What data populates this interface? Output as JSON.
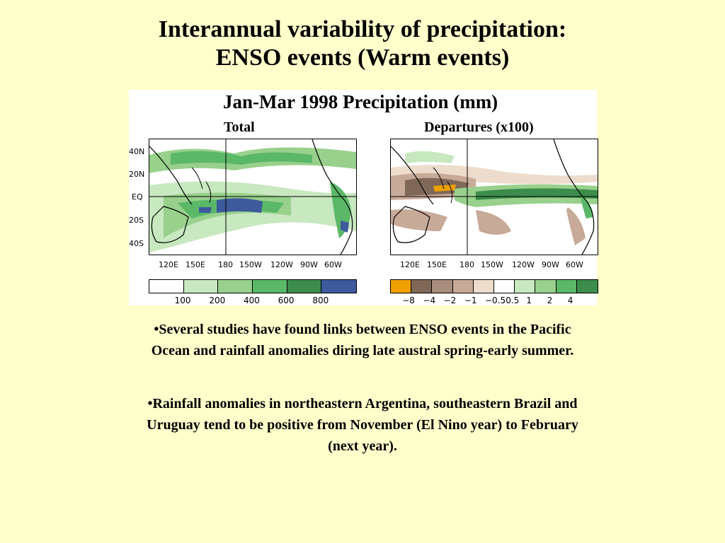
{
  "slide": {
    "title_line1": "Interannual variability of precipitation:",
    "title_line2": "ENSO events (Warm events)",
    "bullets": [
      "•Several studies have found links between ENSO events in the Pacific Ocean and rainfall anomalies diring late austral spring-early summer.",
      "•Rainfall anomalies in northeastern Argentina, southeastern Brazil and Uruguay tend to be positive from November (El Nino year) to February (next year)."
    ]
  },
  "figure": {
    "title": "Jan-Mar 1998 Precipitation (mm)",
    "left_panel": "Total",
    "right_panel": "Departures (x100)",
    "lat_labels": [
      "40N",
      "20N",
      "EQ",
      "20S",
      "40S"
    ],
    "lon_labels": [
      "120E",
      "150E",
      "180",
      "150W",
      "120W",
      "90W",
      "60W"
    ],
    "total_colorbar": {
      "colors": [
        "#ffffff",
        "#c8e8c0",
        "#98d08c",
        "#5ab868",
        "#3c8c4c",
        "#3c5a9c"
      ],
      "ticks": [
        "100",
        "200",
        "400",
        "600",
        "800"
      ]
    },
    "departure_colorbar": {
      "colors": [
        "#f0a000",
        "#806858",
        "#a88c7c",
        "#c8aa98",
        "#eddccc",
        "#ffffff",
        "#c8e8c0",
        "#98d08c",
        "#5ab868",
        "#3c8c4c"
      ],
      "ticks": [
        "−8",
        "−4",
        "−2",
        "−1",
        "−0.5",
        "0.5",
        "1",
        "2",
        "4"
      ]
    }
  }
}
